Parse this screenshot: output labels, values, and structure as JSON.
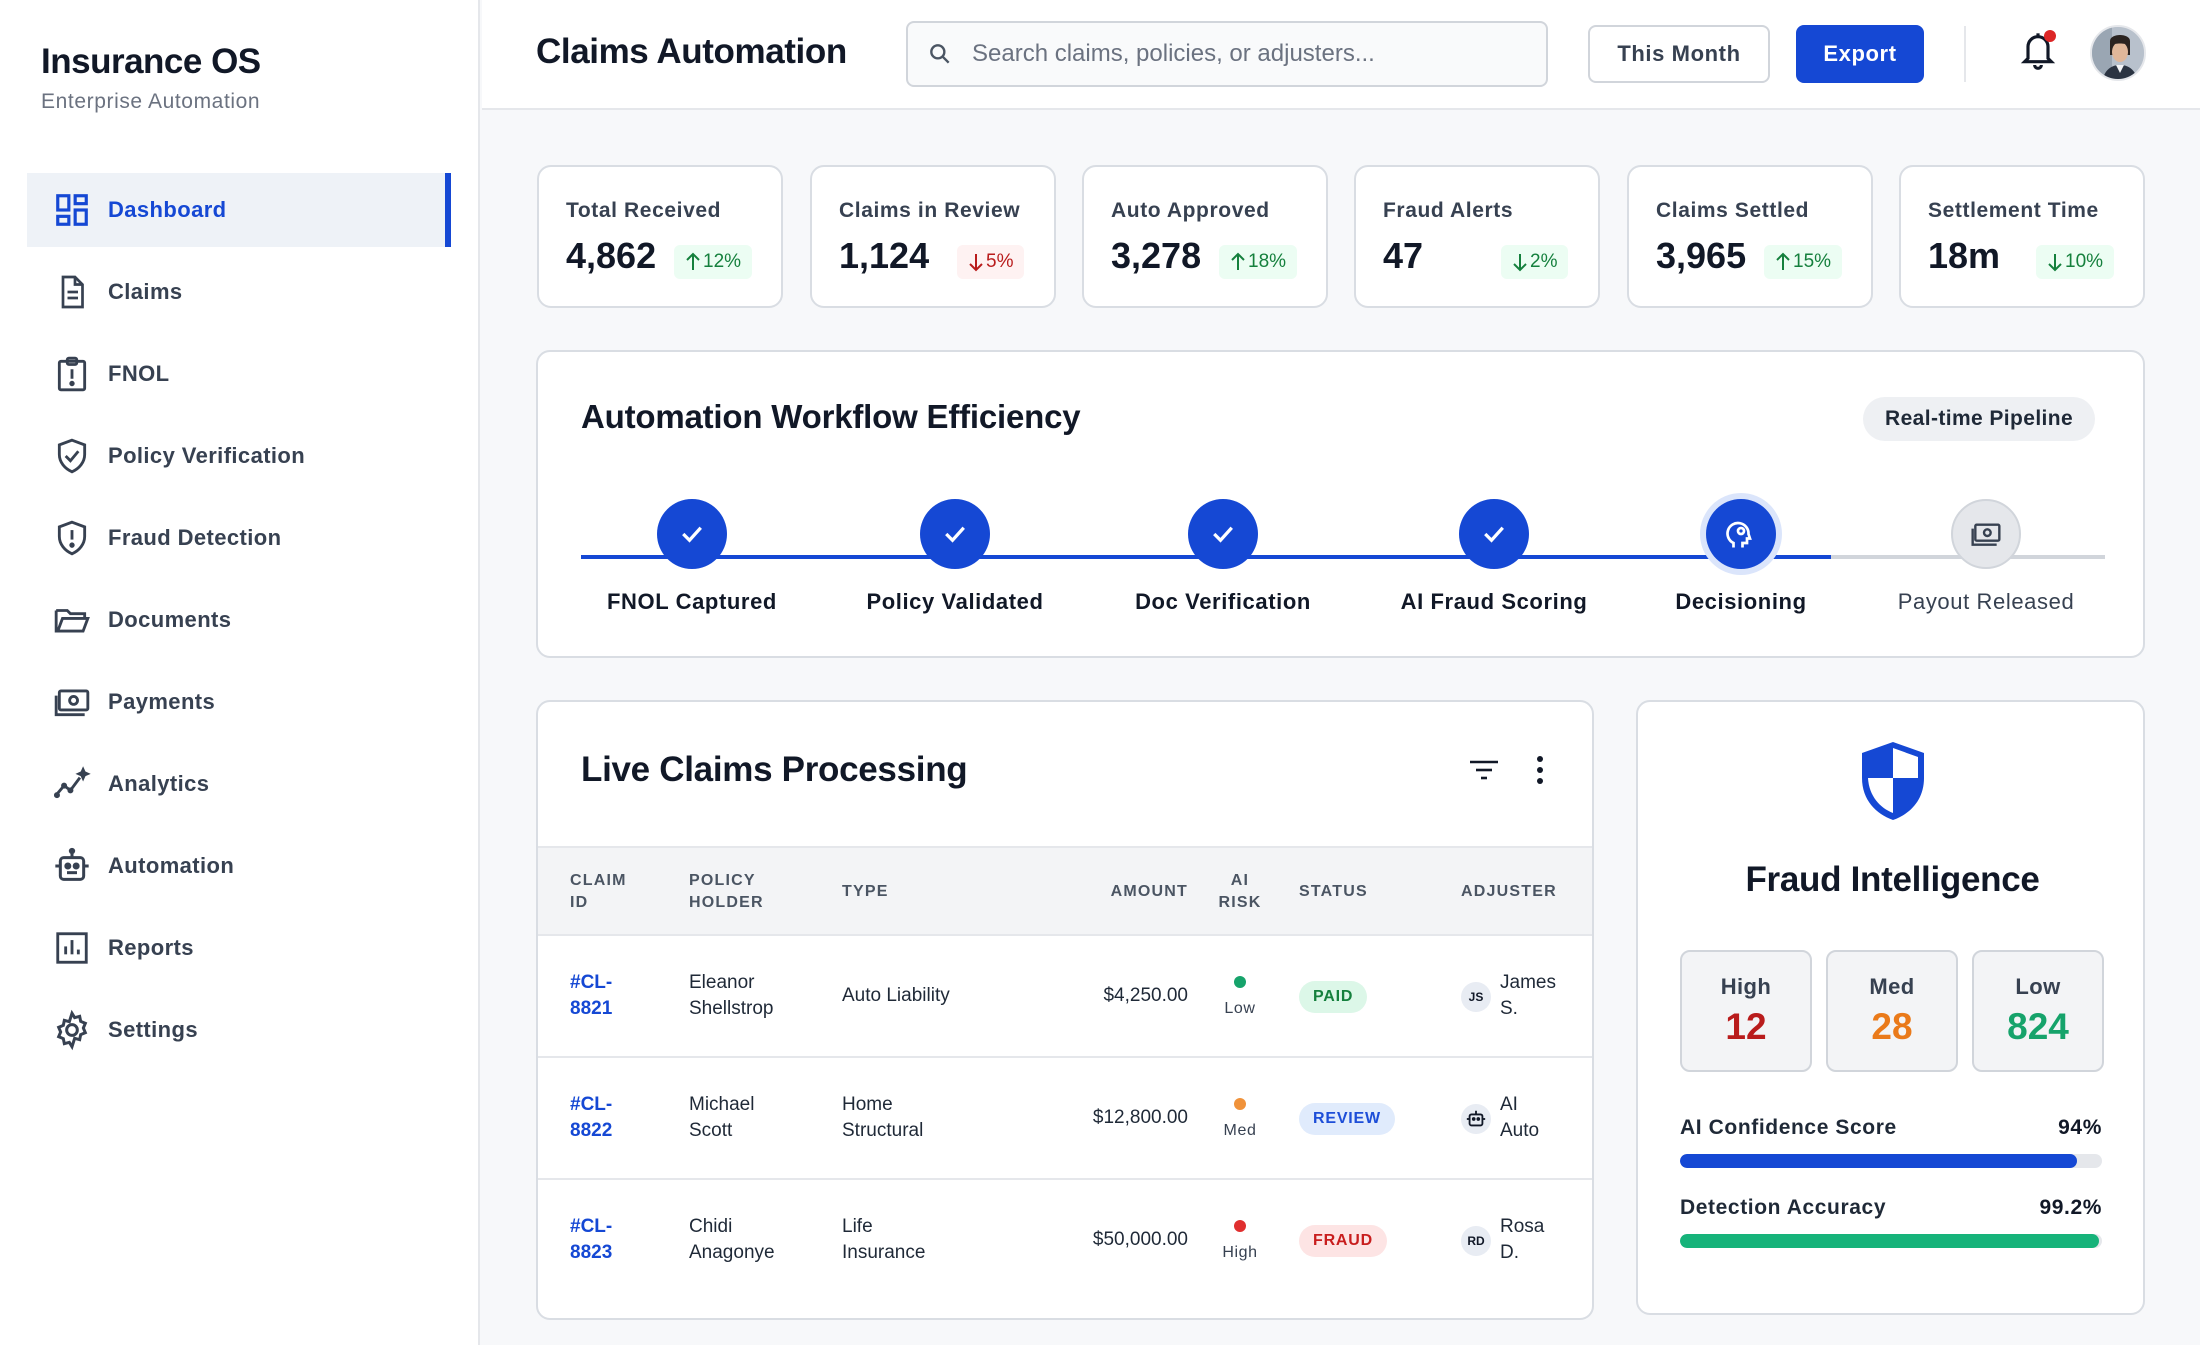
{
  "brand": {
    "title": "Insurance OS",
    "subtitle": "Enterprise Automation"
  },
  "sidebar": {
    "items": [
      {
        "label": "Dashboard",
        "icon": "dashboard-icon",
        "active": true
      },
      {
        "label": "Claims",
        "icon": "document-icon"
      },
      {
        "label": "FNOL",
        "icon": "clipboard-alert-icon"
      },
      {
        "label": "Policy Verification",
        "icon": "shield-check-icon"
      },
      {
        "label": "Fraud Detection",
        "icon": "shield-alert-icon"
      },
      {
        "label": "Documents",
        "icon": "folder-icon"
      },
      {
        "label": "Payments",
        "icon": "cash-icon"
      },
      {
        "label": "Analytics",
        "icon": "sparkline-icon"
      },
      {
        "label": "Automation",
        "icon": "robot-icon"
      },
      {
        "label": "Reports",
        "icon": "bar-report-icon"
      },
      {
        "label": "Settings",
        "icon": "gear-icon"
      }
    ]
  },
  "header": {
    "title": "Claims Automation",
    "search_placeholder": "Search claims, policies, or adjusters...",
    "period_label": "This Month",
    "export_label": "Export"
  },
  "kpis": [
    {
      "label": "Total Received",
      "value": "4,862",
      "delta": "12%",
      "direction": "up",
      "tone": "positive"
    },
    {
      "label": "Claims in Review",
      "value": "1,124",
      "delta": "5%",
      "direction": "down",
      "tone": "negative"
    },
    {
      "label": "Auto Approved",
      "value": "3,278",
      "delta": "18%",
      "direction": "up",
      "tone": "positive"
    },
    {
      "label": "Fraud Alerts",
      "value": "47",
      "delta": "2%",
      "direction": "down",
      "tone": "positive"
    },
    {
      "label": "Claims Settled",
      "value": "3,965",
      "delta": "15%",
      "direction": "up",
      "tone": "positive"
    },
    {
      "label": "Settlement Time",
      "value": "18m",
      "delta": "10%",
      "direction": "down",
      "tone": "positive"
    }
  ],
  "workflow": {
    "title": "Automation Workflow Efficiency",
    "badge": "Real-time Pipeline",
    "steps": [
      {
        "label": "FNOL Captured",
        "state": "done"
      },
      {
        "label": "Policy Validated",
        "state": "done"
      },
      {
        "label": "Doc Verification",
        "state": "done"
      },
      {
        "label": "AI Fraud Scoring",
        "state": "done"
      },
      {
        "label": "Decisioning",
        "state": "current"
      },
      {
        "label": "Payout Released",
        "state": "pending"
      }
    ]
  },
  "claims": {
    "title": "Live Claims Processing",
    "columns": {
      "claim_id": [
        "CLAIM",
        "ID"
      ],
      "holder": [
        "POLICY",
        "HOLDER"
      ],
      "type": "TYPE",
      "amount": "AMOUNT",
      "risk": [
        "AI",
        "RISK"
      ],
      "status": "STATUS",
      "adjuster": "ADJUSTER"
    },
    "rows": [
      {
        "id": [
          "#CL-",
          "8821"
        ],
        "holder": [
          "Eleanor",
          "Shellstrop"
        ],
        "type": [
          "Auto Liability"
        ],
        "amount": "$4,250.00",
        "risk": "Low",
        "status": "PAID",
        "adjuster_badge": "JS",
        "adjuster": [
          "James",
          "S."
        ]
      },
      {
        "id": [
          "#CL-",
          "8822"
        ],
        "holder": [
          "Michael",
          "Scott"
        ],
        "type": [
          "Home",
          "Structural"
        ],
        "amount": "$12,800.00",
        "risk": "Med",
        "status": "REVIEW",
        "adjuster_badge": "",
        "adjuster_icon": "robot-icon",
        "adjuster": [
          "AI",
          "Auto"
        ]
      },
      {
        "id": [
          "#CL-",
          "8823"
        ],
        "holder": [
          "Chidi",
          "Anagonye"
        ],
        "type": [
          "Life",
          "Insurance"
        ],
        "amount": "$50,000.00",
        "risk": "High",
        "status": "FRAUD",
        "adjuster_badge": "RD",
        "adjuster": [
          "Rosa",
          "D."
        ]
      }
    ]
  },
  "fraud": {
    "title": "Fraud Intelligence",
    "levels": [
      {
        "label": "High",
        "value": "12",
        "color": "#b91c1c"
      },
      {
        "label": "Med",
        "value": "28",
        "color": "#ea7a1a"
      },
      {
        "label": "Low",
        "value": "824",
        "color": "#16a36b"
      }
    ],
    "metrics": [
      {
        "label": "AI Confidence Score",
        "value": "94%",
        "fraction": 0.94,
        "color": "#1548d4"
      },
      {
        "label": "Detection Accuracy",
        "value": "99.2%",
        "fraction": 0.992,
        "color": "#16b37a"
      }
    ]
  },
  "colors": {
    "accent": "#1548d4",
    "positive": "#15803d",
    "negative": "#b91c1c",
    "risk_low": "#16a36b",
    "risk_med": "#f0923a",
    "risk_high": "#e02f2f"
  }
}
